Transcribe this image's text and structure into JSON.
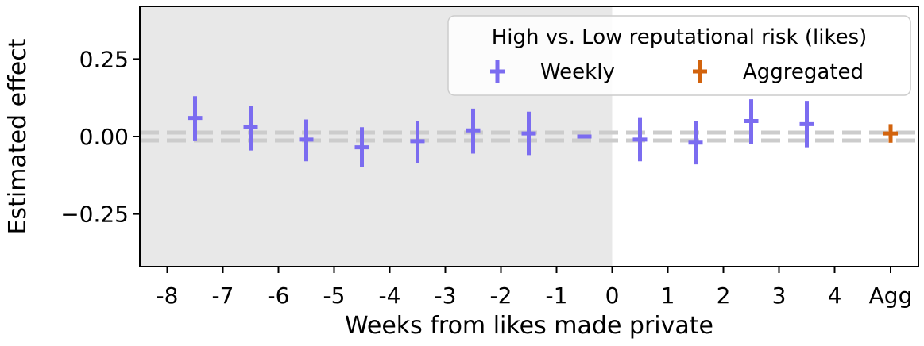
{
  "chart_data": {
    "type": "scatter",
    "xlabel": "Weeks from likes made private",
    "ylabel": "Estimated effect",
    "categories": [
      "-8",
      "-7",
      "-6",
      "-5",
      "-4",
      "-3",
      "-2",
      "-1",
      "0",
      "1",
      "2",
      "3",
      "4",
      "Agg"
    ],
    "yticks": [
      "0.25",
      "0.00",
      "−0.25"
    ],
    "ylim": [
      -0.42,
      0.42
    ],
    "shaded_region": "weeks -8 to 0 (pre-period)",
    "reference_line": {
      "y": 0.0,
      "style": "dashed",
      "color": "#cccccc"
    },
    "legend": {
      "title": "High vs. Low reputational risk (likes)",
      "position": "top-right",
      "entries": [
        "Weekly",
        "Aggregated"
      ]
    },
    "series": [
      {
        "name": "Weekly",
        "color": "#7b6cf0",
        "points": [
          {
            "x": -7.5,
            "y": 0.06,
            "lo": -0.015,
            "hi": 0.13
          },
          {
            "x": -6.5,
            "y": 0.03,
            "lo": -0.045,
            "hi": 0.1
          },
          {
            "x": -5.5,
            "y": -0.01,
            "lo": -0.08,
            "hi": 0.055
          },
          {
            "x": -4.5,
            "y": -0.035,
            "lo": -0.1,
            "hi": 0.03
          },
          {
            "x": -3.5,
            "y": -0.015,
            "lo": -0.085,
            "hi": 0.05
          },
          {
            "x": -2.5,
            "y": 0.02,
            "lo": -0.055,
            "hi": 0.09
          },
          {
            "x": -1.5,
            "y": 0.01,
            "lo": -0.06,
            "hi": 0.08
          },
          {
            "x": -0.5,
            "y": 0.0,
            "lo": 0.0,
            "hi": 0.0
          },
          {
            "x": 0.5,
            "y": -0.01,
            "lo": -0.08,
            "hi": 0.06
          },
          {
            "x": 1.5,
            "y": -0.02,
            "lo": -0.09,
            "hi": 0.05
          },
          {
            "x": 2.5,
            "y": 0.05,
            "lo": -0.025,
            "hi": 0.12
          },
          {
            "x": 3.5,
            "y": 0.04,
            "lo": -0.035,
            "hi": 0.115
          }
        ]
      },
      {
        "name": "Aggregated",
        "color": "#d2630d",
        "points": [
          {
            "x": "Agg",
            "y": 0.01,
            "lo": -0.02,
            "hi": 0.04
          }
        ]
      }
    ]
  }
}
